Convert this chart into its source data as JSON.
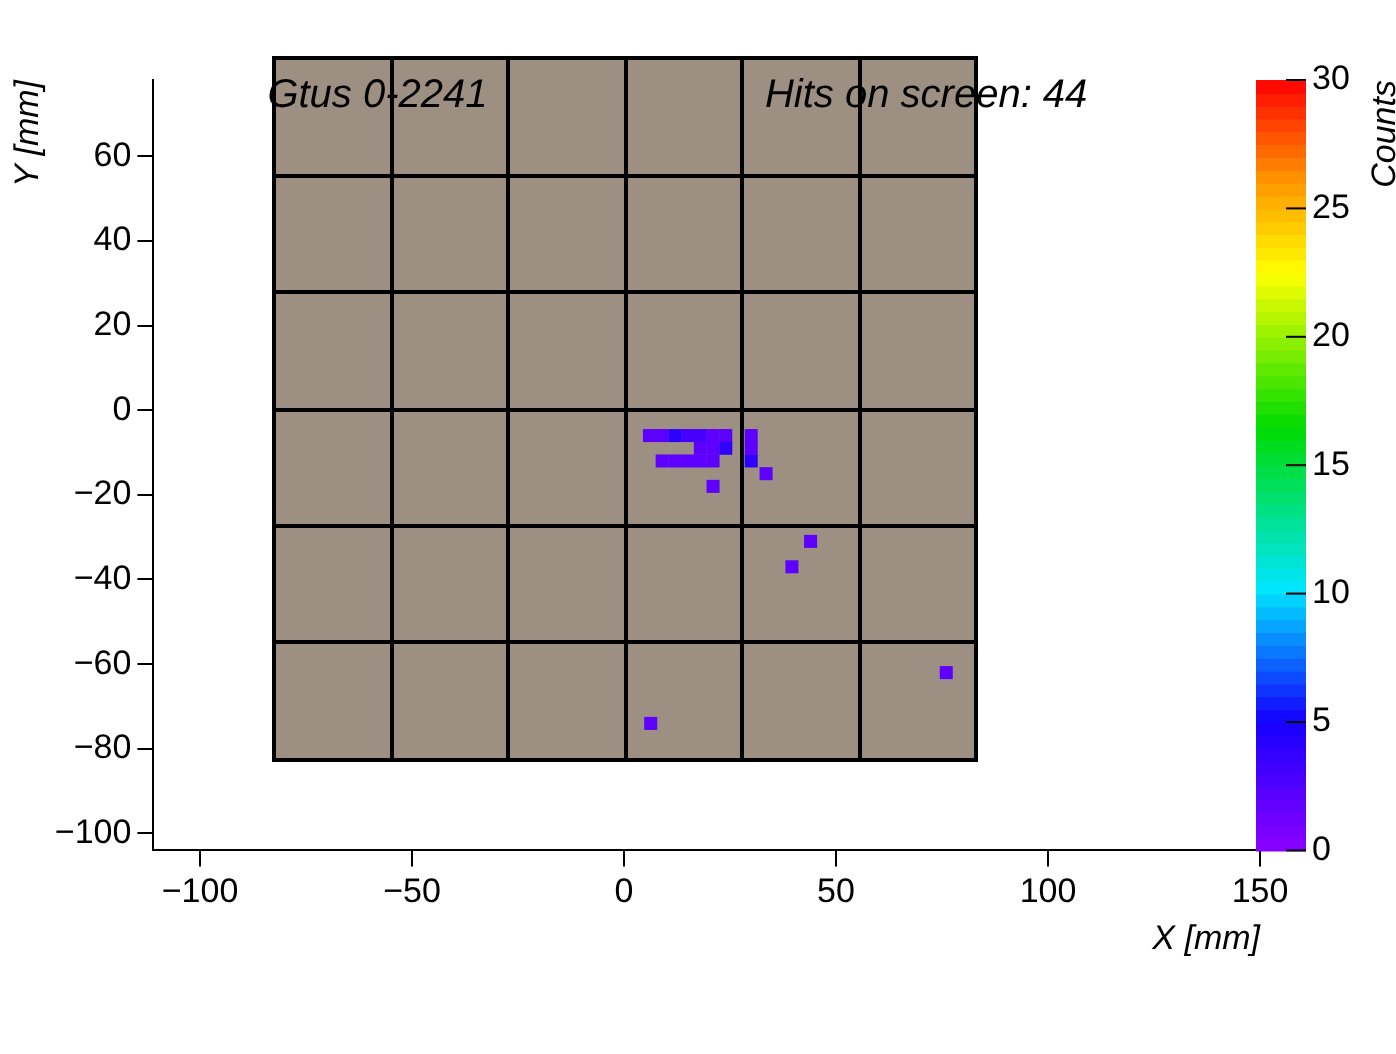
{
  "chart_data": {
    "type": "scatter",
    "title": "Gtus 0-2241",
    "annotations": [
      "Hits on screen: 44"
    ],
    "xlabel": "X [mm]",
    "ylabel": "Y [mm]",
    "clabel": "Counts",
    "x": [
      6,
      9,
      12,
      15,
      18,
      21,
      24,
      30,
      18,
      21,
      24,
      30,
      9,
      12,
      15,
      18,
      21,
      30,
      21,
      33.5,
      44,
      39.6,
      76,
      6.3
    ],
    "values": [
      -6,
      -6,
      -6,
      -6,
      -6,
      -6,
      -6,
      -6,
      -9,
      -9,
      -9,
      -9,
      -12,
      -12,
      -12,
      -12,
      -12,
      -12,
      -18,
      -15,
      -31,
      -37,
      -62,
      -74
    ],
    "cvalues": [
      2,
      2,
      4,
      3,
      3,
      2,
      2,
      2,
      2,
      2,
      4,
      2,
      2,
      2,
      2,
      2,
      2,
      4,
      2,
      2,
      2,
      2,
      2,
      2
    ],
    "xlim": [
      -111,
      150
    ],
    "xticks": [
      -100,
      -50,
      0,
      50,
      100,
      150
    ],
    "ylim": [
      -104,
      78
    ],
    "yticks": [
      -100,
      -80,
      -60,
      -40,
      -20,
      0,
      20,
      40,
      60
    ],
    "clim": [
      0,
      30
    ],
    "cticks": [
      0,
      5,
      10,
      15,
      20,
      25,
      30
    ],
    "marker": "square",
    "grid": false,
    "legend": false
  }
}
